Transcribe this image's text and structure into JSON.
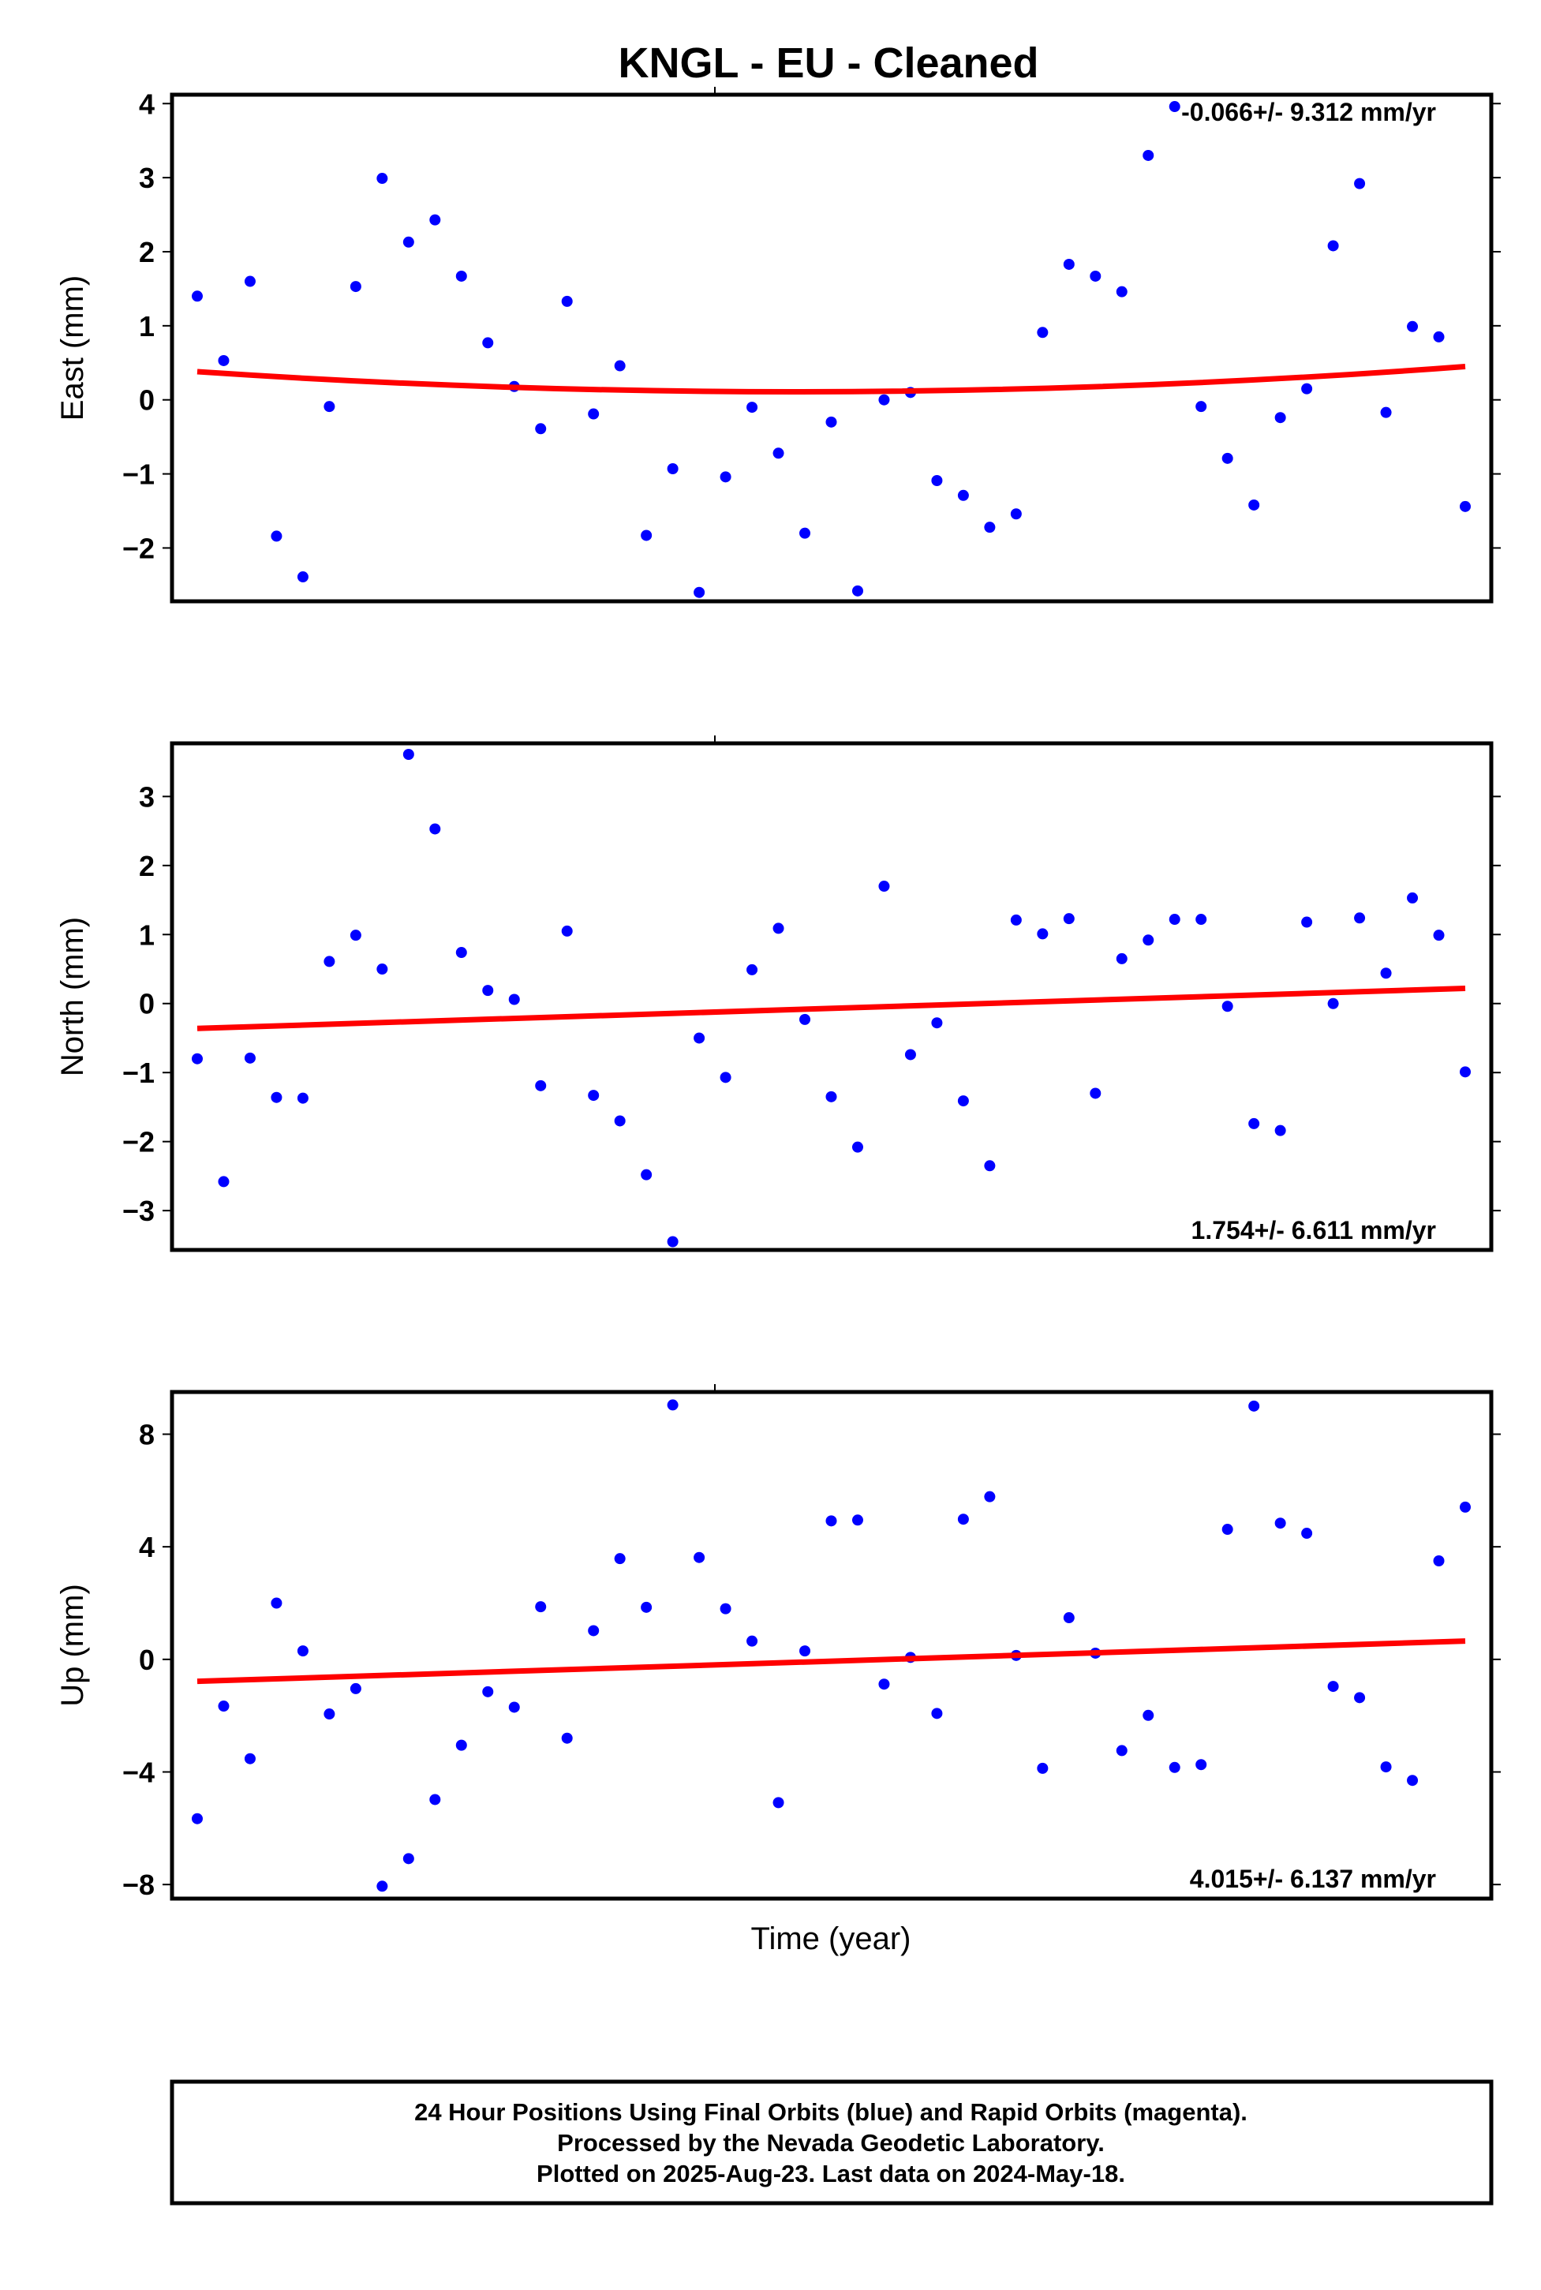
{
  "title": "KNGL  - EU - Cleaned",
  "xlabel": "Time (year)",
  "footer": {
    "line1": "24 Hour Positions Using Final Orbits (blue) and Rapid Orbits (magenta).",
    "line2": "Processed by the Nevada Geodetic Laboratory.",
    "line3": "Plotted on 2025-Aug-23. Last data on 2024-May-18."
  },
  "colors": {
    "points": "#0000ff",
    "fit": "#ff0000",
    "frame": "#000000"
  },
  "chart_data": [
    {
      "type": "scatter",
      "ylabel": "East (mm)",
      "rate": "-0.066+/- 9.312 mm/yr",
      "rate_position": "top-right",
      "ylim": [
        -2.72,
        4.12
      ],
      "yticks": [
        4,
        3,
        2,
        1,
        0,
        -1,
        -2
      ],
      "ytick_labels": [
        "4",
        "3",
        "2",
        "1",
        "0",
        "−1",
        "−2"
      ],
      "fit": {
        "kind": "quadratic",
        "points": [
          [
            0,
            0.38
          ],
          [
            24,
            0.11
          ],
          [
            48,
            0.45
          ]
        ]
      },
      "values": [
        1.4,
        0.53,
        1.6,
        -1.84,
        -2.39,
        -0.09,
        1.53,
        2.99,
        2.13,
        2.43,
        1.67,
        0.77,
        0.18,
        -0.39,
        1.33,
        -0.19,
        0.46,
        -1.83,
        -0.93,
        -2.6,
        -1.04,
        -0.1,
        -0.72,
        -1.8,
        -0.3,
        -2.58,
        0.0,
        0.1,
        -1.09,
        -1.29,
        -1.72,
        -1.54,
        0.91,
        1.83,
        1.67,
        1.46,
        3.3,
        3.96,
        -0.09,
        -0.79,
        -1.42,
        -0.24,
        0.15,
        2.08,
        2.92,
        -0.17,
        0.99,
        0.85,
        -1.44
      ]
    },
    {
      "type": "scatter",
      "ylabel": "North (mm)",
      "rate": "1.754+/- 6.611 mm/yr",
      "rate_position": "bottom-right",
      "ylim": [
        -3.57,
        3.77
      ],
      "yticks": [
        3,
        2,
        1,
        0,
        -1,
        -2,
        -3
      ],
      "ytick_labels": [
        "3",
        "2",
        "1",
        "0",
        "−1",
        "−2",
        "−3"
      ],
      "fit": {
        "kind": "linear",
        "points": [
          [
            0,
            -0.36
          ],
          [
            48,
            0.22
          ]
        ]
      },
      "values": [
        -0.8,
        -2.58,
        -0.79,
        -1.36,
        -1.37,
        0.61,
        0.99,
        0.5,
        3.61,
        2.53,
        0.74,
        0.19,
        0.06,
        -1.19,
        1.05,
        -1.33,
        -1.7,
        -2.48,
        -3.45,
        -0.5,
        -1.07,
        0.49,
        1.09,
        -0.23,
        -1.35,
        -2.08,
        1.7,
        -0.74,
        -0.28,
        -1.41,
        -2.35,
        1.21,
        1.01,
        1.23,
        -1.3,
        0.65,
        0.92,
        1.22,
        1.22,
        -0.04,
        -1.74,
        -1.84,
        1.18,
        0.0,
        1.24,
        0.44,
        1.53,
        0.99,
        -0.99
      ]
    },
    {
      "type": "scatter",
      "ylabel": "Up (mm)",
      "rate": "4.015+/- 6.137 mm/yr",
      "rate_position": "bottom-right",
      "ylim": [
        -8.5,
        9.5
      ],
      "yticks": [
        8,
        4,
        0,
        -4,
        -8
      ],
      "ytick_labels": [
        "8",
        "4",
        "0",
        "−4",
        "−8"
      ],
      "fit": {
        "kind": "linear",
        "points": [
          [
            0,
            -0.78
          ],
          [
            48,
            0.65
          ]
        ]
      },
      "values": [
        -5.66,
        -1.66,
        -3.53,
        2.0,
        0.3,
        -1.94,
        -1.04,
        -8.06,
        -7.08,
        -4.98,
        -3.05,
        -1.15,
        -1.7,
        1.87,
        -2.8,
        1.02,
        3.58,
        1.85,
        9.04,
        3.62,
        1.8,
        0.65,
        -5.09,
        0.3,
        4.92,
        4.95,
        -0.88,
        0.07,
        -1.92,
        4.98,
        5.78,
        0.14,
        -3.87,
        1.48,
        0.22,
        -3.24,
        -1.99,
        -3.84,
        -3.74,
        4.62,
        9.0,
        4.84,
        4.48,
        -0.96,
        -1.36,
        -3.82,
        -4.3,
        3.5,
        5.41
      ]
    }
  ]
}
